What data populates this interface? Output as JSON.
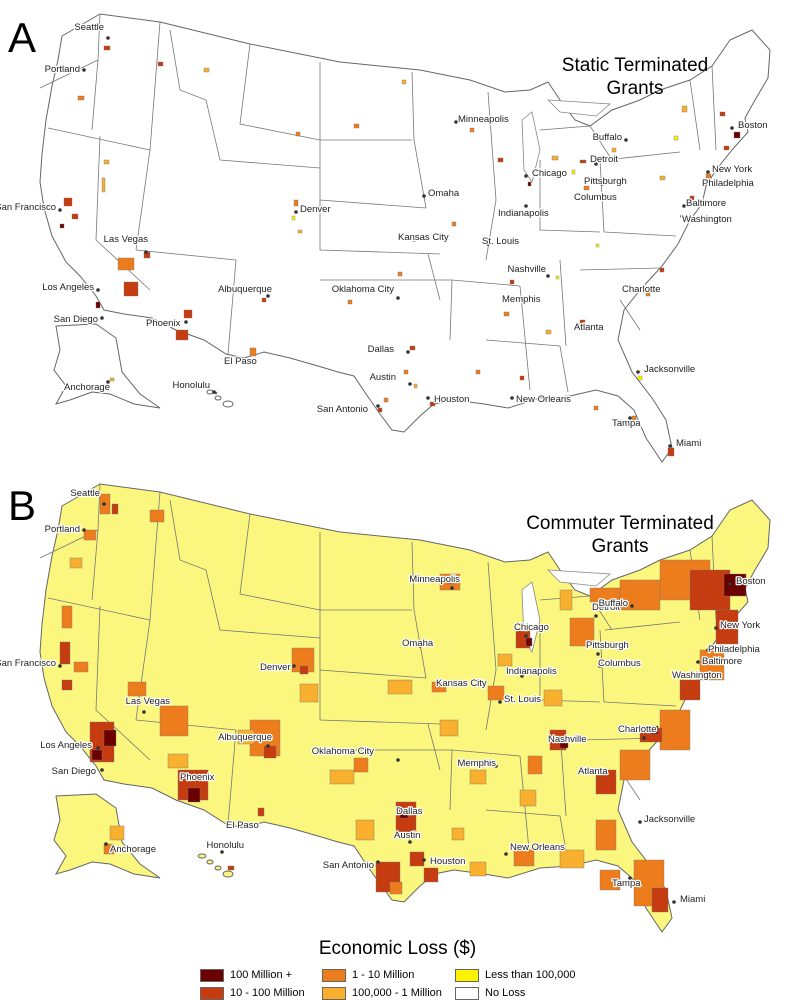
{
  "panels": [
    {
      "letter": "A",
      "title_line1": "Static Terminated",
      "title_line2": "Grants",
      "base_fill": "#ffffff",
      "cities": [
        {
          "name": "Seattle"
        },
        {
          "name": "Portland"
        },
        {
          "name": "San Francisco"
        },
        {
          "name": "Las Vegas"
        },
        {
          "name": "Los Angeles"
        },
        {
          "name": "San Diego"
        },
        {
          "name": "Phoenix"
        },
        {
          "name": "Albuquerque"
        },
        {
          "name": "El Paso"
        },
        {
          "name": "Denver"
        },
        {
          "name": "Oklahoma City"
        },
        {
          "name": "Dallas"
        },
        {
          "name": "Austin"
        },
        {
          "name": "San Antonio"
        },
        {
          "name": "Houston"
        },
        {
          "name": "Minneapolis"
        },
        {
          "name": "Omaha"
        },
        {
          "name": "Kansas City"
        },
        {
          "name": "St. Louis"
        },
        {
          "name": "Memphis"
        },
        {
          "name": "Nashville"
        },
        {
          "name": "New Orleans"
        },
        {
          "name": "Chicago"
        },
        {
          "name": "Indianapolis"
        },
        {
          "name": "Detroit"
        },
        {
          "name": "Columbus"
        },
        {
          "name": "Pittsburgh"
        },
        {
          "name": "Buffalo"
        },
        {
          "name": "Boston"
        },
        {
          "name": "New York"
        },
        {
          "name": "Philadelphia"
        },
        {
          "name": "Baltimore"
        },
        {
          "name": "Washington"
        },
        {
          "name": "Charlotte"
        },
        {
          "name": "Atlanta"
        },
        {
          "name": "Jacksonville"
        },
        {
          "name": "Tampa"
        },
        {
          "name": "Miami"
        },
        {
          "name": "Anchorage"
        },
        {
          "name": "Honolulu"
        }
      ]
    },
    {
      "letter": "B",
      "title_line1": "Commuter Terminated",
      "title_line2": "Grants",
      "base_fill": "#fbf67e",
      "cities": [
        {
          "name": "Seattle"
        },
        {
          "name": "Portland"
        },
        {
          "name": "San Francisco"
        },
        {
          "name": "Las Vegas"
        },
        {
          "name": "Los Angeles"
        },
        {
          "name": "San Diego"
        },
        {
          "name": "Phoenix"
        },
        {
          "name": "Albuquerque"
        },
        {
          "name": "El Paso"
        },
        {
          "name": "Denver"
        },
        {
          "name": "Oklahoma City"
        },
        {
          "name": "Dallas"
        },
        {
          "name": "Austin"
        },
        {
          "name": "San Antonio"
        },
        {
          "name": "Houston"
        },
        {
          "name": "Minneapolis"
        },
        {
          "name": "Omaha"
        },
        {
          "name": "Kansas City"
        },
        {
          "name": "St. Louis"
        },
        {
          "name": "Memphis"
        },
        {
          "name": "Nashville"
        },
        {
          "name": "New Orleans"
        },
        {
          "name": "Chicago"
        },
        {
          "name": "Indianapolis"
        },
        {
          "name": "Detroit"
        },
        {
          "name": "Columbus"
        },
        {
          "name": "Pittsburgh"
        },
        {
          "name": "Buffalo"
        },
        {
          "name": "Boston"
        },
        {
          "name": "New York"
        },
        {
          "name": "Philadelphia"
        },
        {
          "name": "Baltimore"
        },
        {
          "name": "Washington"
        },
        {
          "name": "Charlotte"
        },
        {
          "name": "Atlanta"
        },
        {
          "name": "Jacksonville"
        },
        {
          "name": "Tampa"
        },
        {
          "name": "Miami"
        },
        {
          "name": "Anchorage"
        },
        {
          "name": "Honolulu"
        }
      ]
    }
  ],
  "legend": {
    "title": "Economic Loss ($)",
    "items": [
      {
        "label": "100 Million +",
        "color": "#6b0000"
      },
      {
        "label": "10 - 100 Million",
        "color": "#c43c0f"
      },
      {
        "label": "1 - 10 Million",
        "color": "#ed7d1c"
      },
      {
        "label": "100,000 - 1 Million",
        "color": "#f8b02e"
      },
      {
        "label": "Less than 100,000",
        "color": "#fff200"
      },
      {
        "label": "No Loss",
        "color": "#ffffff"
      }
    ]
  }
}
